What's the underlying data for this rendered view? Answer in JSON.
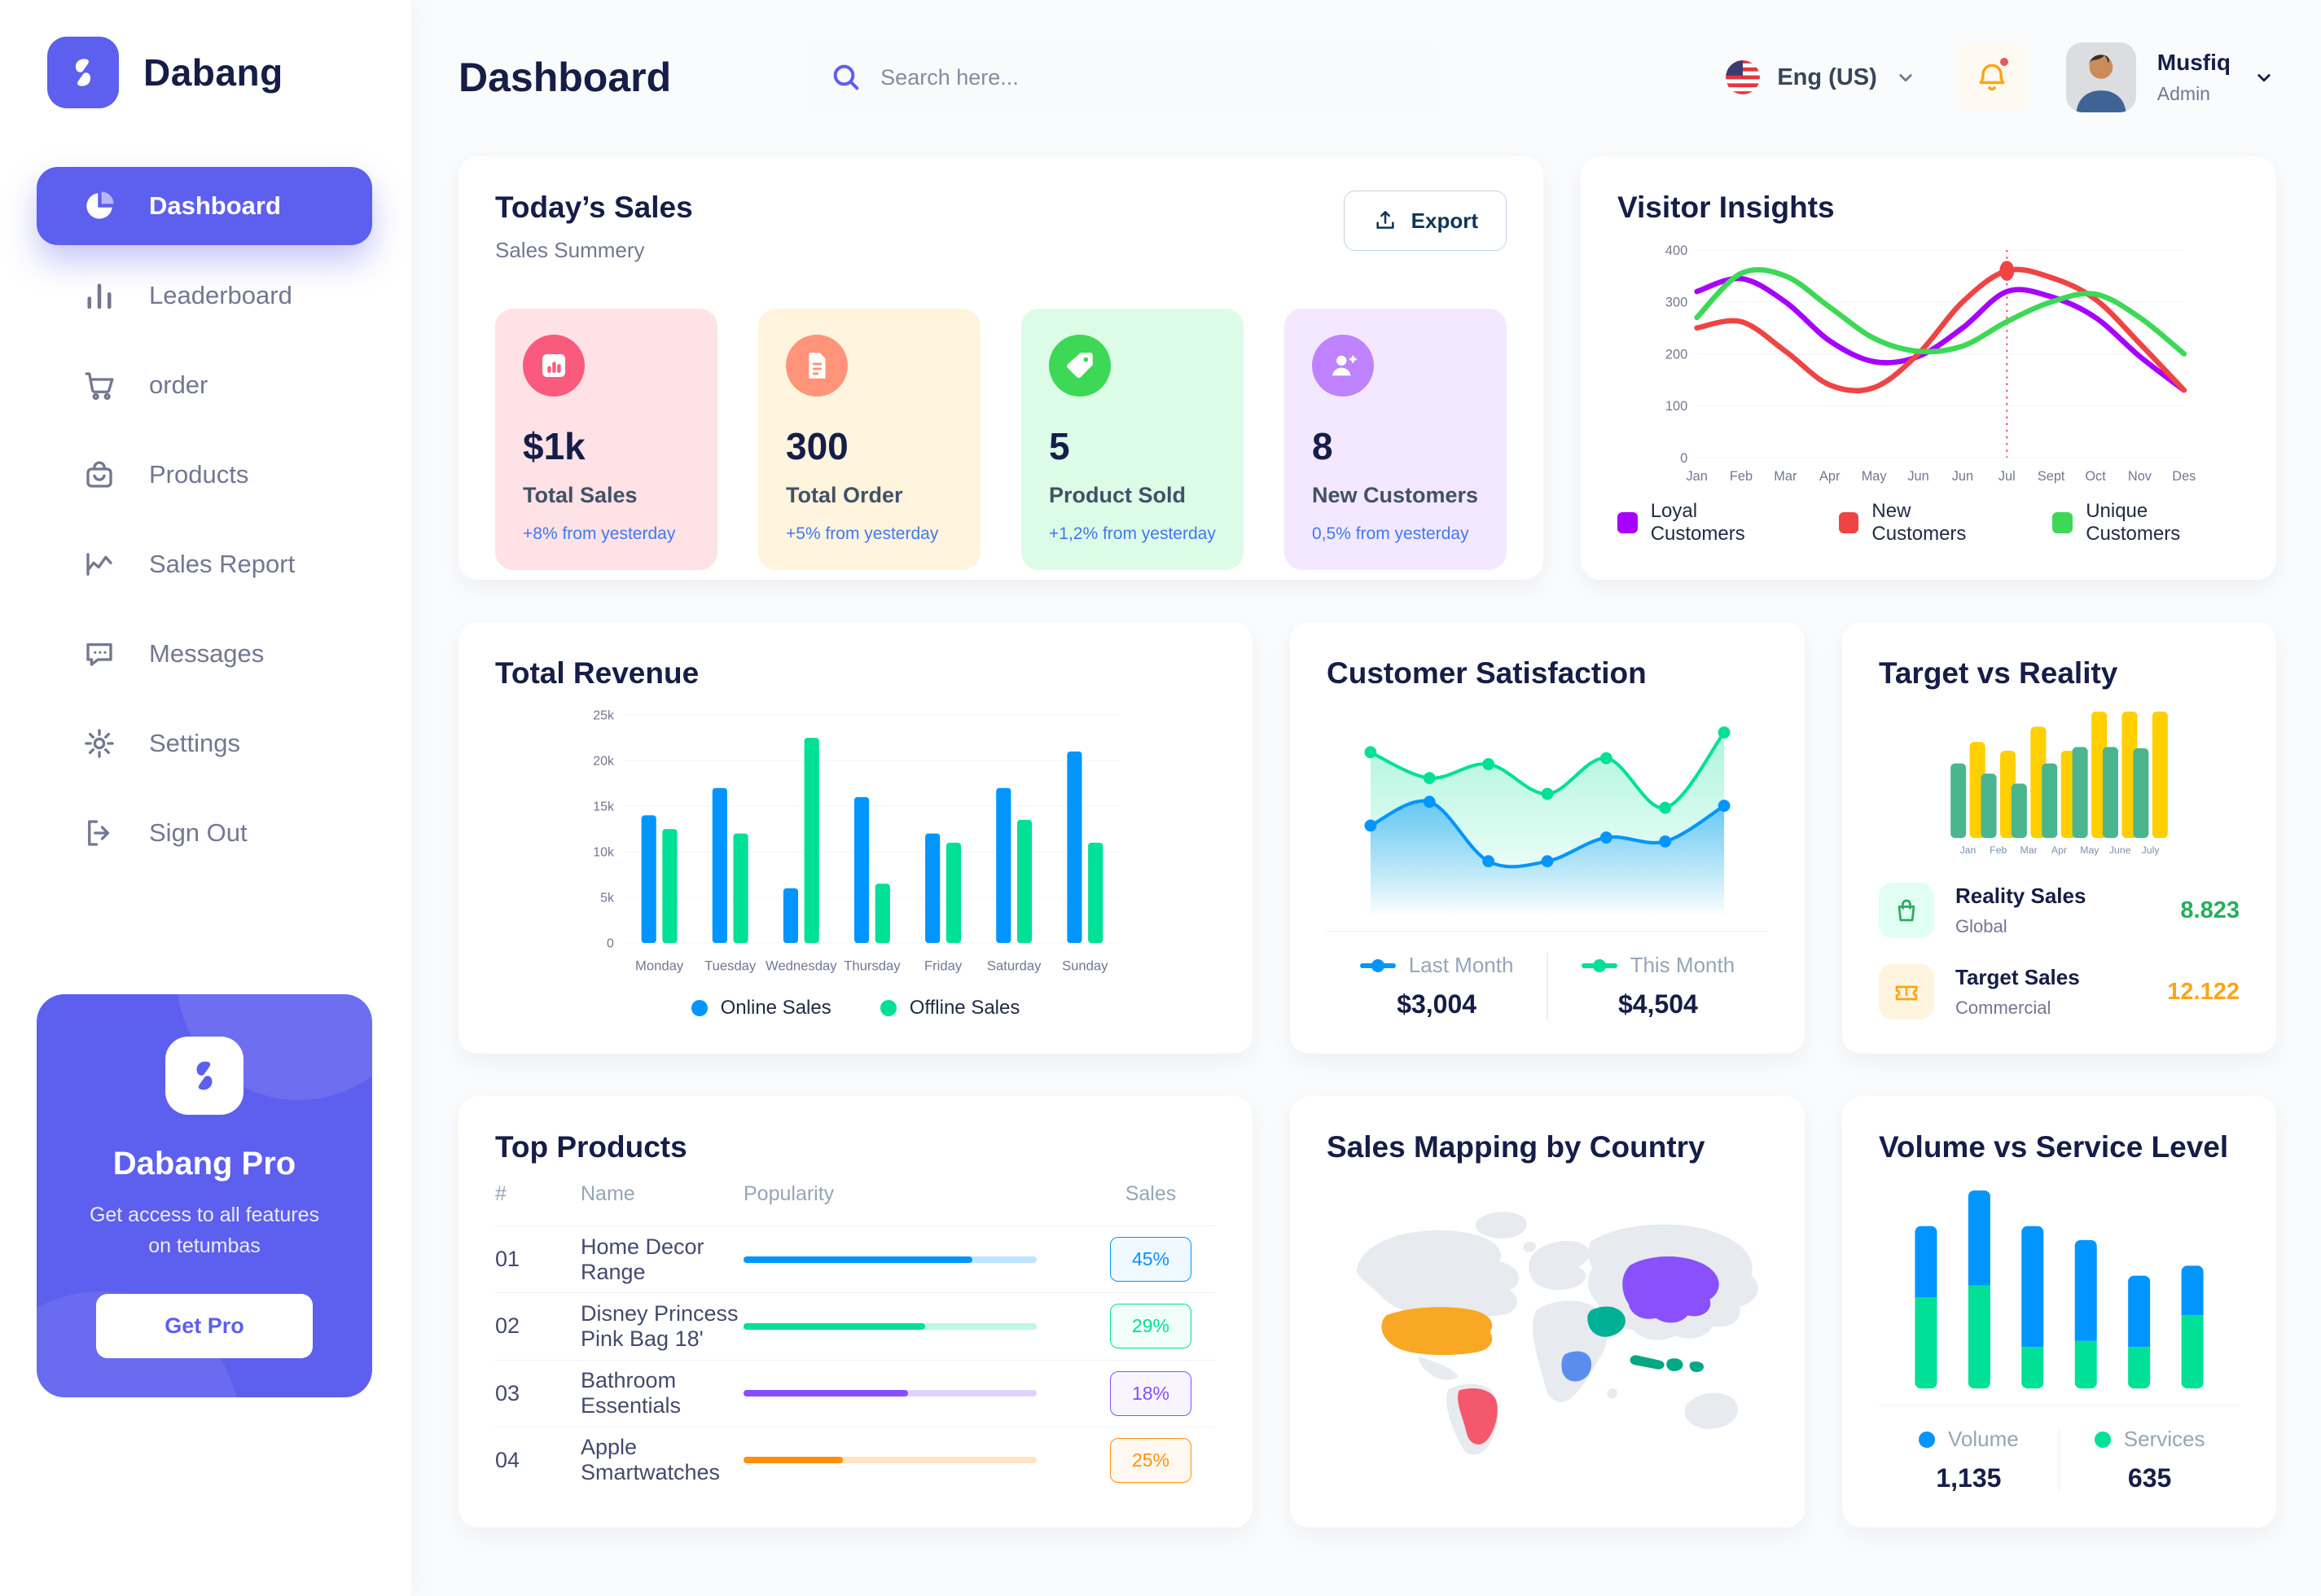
{
  "colors": {
    "accent": "#5D5FEF",
    "text_dark": "#151D48",
    "text_gray": "#737791",
    "delta_blue": "#4079ED"
  },
  "sidebar": {
    "brand": "Dabang",
    "items": [
      {
        "label": "Dashboard",
        "icon": "pie-chart",
        "active": true
      },
      {
        "label": "Leaderboard",
        "icon": "bar-chart",
        "active": false
      },
      {
        "label": "order",
        "icon": "cart",
        "active": false
      },
      {
        "label": "Products",
        "icon": "bag",
        "active": false
      },
      {
        "label": "Sales Report",
        "icon": "line-chart",
        "active": false
      },
      {
        "label": "Messages",
        "icon": "chat",
        "active": false
      },
      {
        "label": "Settings",
        "icon": "gear",
        "active": false
      },
      {
        "label": "Sign Out",
        "icon": "sign-out",
        "active": false
      }
    ],
    "pro": {
      "title": "Dabang Pro",
      "description": "Get access to all features on tetumbas",
      "button_label": "Get Pro"
    }
  },
  "header": {
    "page_title": "Dashboard",
    "search_placeholder": "Search here...",
    "language_label": "Eng (US)",
    "user_name": "Musfiq",
    "user_role": "Admin"
  },
  "today_sales": {
    "title": "Today’s Sales",
    "subtitle": "Sales Summery",
    "export_label": "Export",
    "stats": [
      {
        "value": "$1k",
        "label": "Total Sales",
        "delta": "+8% from yesterday",
        "bg": "#FFE2E5",
        "icon_bg": "#FA5A7D",
        "icon": "stat-bars"
      },
      {
        "value": "300",
        "label": "Total Order",
        "delta": "+5% from yesterday",
        "bg": "#FFF4DE",
        "icon_bg": "#FF947A",
        "icon": "stat-doc"
      },
      {
        "value": "5",
        "label": "Product Sold",
        "delta": "+1,2% from yesterday",
        "bg": "#DCFCE7",
        "icon_bg": "#3CD856",
        "icon": "stat-tag"
      },
      {
        "value": "8",
        "label": "New Customers",
        "delta": "0,5% from yesterday",
        "bg": "#F3E8FF",
        "icon_bg": "#BF83FF",
        "icon": "stat-user"
      }
    ]
  },
  "chart_data": [
    {
      "id": "visitor_insights",
      "type": "line",
      "title": "Visitor Insights",
      "x_labels": [
        "Jan",
        "Feb",
        "Mar",
        "Apr",
        "May",
        "Jun",
        "Jun",
        "Jul",
        "Sept",
        "Oct",
        "Nov",
        "Des"
      ],
      "ylim": [
        0,
        400
      ],
      "yticks": [
        0,
        100,
        200,
        300,
        400
      ],
      "grid": true,
      "legend_position": "bottom",
      "series": [
        {
          "name": "Loyal Customers",
          "color": "#A700FF",
          "values": [
            320,
            345,
            300,
            225,
            185,
            195,
            250,
            320,
            310,
            270,
            195,
            130
          ]
        },
        {
          "name": "New Customers",
          "color": "#EF4444",
          "values": [
            250,
            262,
            205,
            140,
            135,
            200,
            300,
            360,
            347,
            305,
            220,
            130
          ]
        },
        {
          "name": "Unique Customers",
          "color": "#3CD856",
          "values": [
            270,
            355,
            350,
            290,
            230,
            205,
            215,
            262,
            300,
            315,
            270,
            200
          ]
        }
      ],
      "marker": {
        "series_index": 1,
        "point_index": 7
      }
    },
    {
      "id": "total_revenue",
      "type": "bar",
      "title": "Total Revenue",
      "categories": [
        "Monday",
        "Tuesday",
        "Wednesday",
        "Thursday",
        "Friday",
        "Saturday",
        "Sunday"
      ],
      "ymax": 25000,
      "ytick_labels": [
        "0",
        "5k",
        "10k",
        "15k",
        "20k",
        "25k"
      ],
      "grid": true,
      "legend_position": "bottom",
      "series": [
        {
          "name": "Online Sales",
          "color": "#0095FF",
          "values": [
            14000,
            17000,
            6000,
            16000,
            12000,
            17000,
            21000
          ]
        },
        {
          "name": "Offline Sales",
          "color": "#00E096",
          "values": [
            12500,
            12000,
            22500,
            6500,
            11000,
            13500,
            11000
          ]
        }
      ]
    },
    {
      "id": "customer_satisfaction",
      "type": "area",
      "title": "Customer Satisfaction",
      "ylim": [
        0,
        100
      ],
      "grid": false,
      "legend_position": "bottom",
      "series": [
        {
          "name": "Last Month",
          "total": "$3,004",
          "color": "#0095FF",
          "values": [
            46,
            58,
            28,
            28,
            40,
            38,
            56
          ]
        },
        {
          "name": "This Month",
          "total": "$4,504",
          "color": "#00E096",
          "values": [
            83,
            70,
            77,
            62,
            80,
            55,
            93
          ]
        }
      ]
    },
    {
      "id": "target_vs_reality",
      "type": "bar",
      "title": "Target vs Reality",
      "categories": [
        "Jan",
        "Feb",
        "Mar",
        "Apr",
        "May",
        "June",
        "July"
      ],
      "ymax": 10,
      "grid": false,
      "legend_position": "bottom-rows",
      "series": [
        {
          "name": "Reality Sales",
          "subtitle": "Global",
          "display_value": "8.823",
          "color": "#4AB58E",
          "value_color": "#27AE60",
          "tint": "#E2FFF3",
          "values": [
            5.9,
            5.1,
            4.3,
            5.9,
            7.2,
            7.2,
            7.1
          ]
        },
        {
          "name": "Target Sales",
          "subtitle": "Commercial",
          "display_value": "12.122",
          "color": "#FFCF00",
          "value_color": "#FFA412",
          "tint": "#FFF4DE",
          "values": [
            7.6,
            6.9,
            8.8,
            6.9,
            10,
            10,
            10
          ]
        }
      ]
    },
    {
      "id": "volume_service",
      "type": "stacked-bar",
      "title": "Volume vs Service Level",
      "ymax": 10,
      "grid": false,
      "legend_position": "bottom",
      "series": [
        {
          "name": "Volume",
          "total": "1,135",
          "color": "#0095FF",
          "values": [
            3.6,
            4.8,
            6.1,
            5.1,
            3.6,
            2.5
          ]
        },
        {
          "name": "Services",
          "total": "635",
          "color": "#00E096",
          "values": [
            4.6,
            5.2,
            2.1,
            2.4,
            2.1,
            3.7
          ]
        }
      ]
    }
  ],
  "top_products": {
    "title": "Top Products",
    "columns": [
      "#",
      "Name",
      "Popularity",
      "Sales"
    ],
    "rows": [
      {
        "num": "01",
        "name": "Home Decor Range",
        "popularity": 78,
        "sales": "45%",
        "color": "#0095FF"
      },
      {
        "num": "02",
        "name": "Disney Princess Pink Bag 18'",
        "popularity": 62,
        "sales": "29%",
        "color": "#00E096"
      },
      {
        "num": "03",
        "name": "Bathroom Essentials",
        "popularity": 56,
        "sales": "18%",
        "color": "#884DFF"
      },
      {
        "num": "04",
        "name": "Apple Smartwatches",
        "popularity": 34,
        "sales": "25%",
        "color": "#FF8F0D"
      }
    ]
  },
  "sales_map": {
    "title": "Sales Mapping by Country",
    "countries": [
      {
        "name": "United States",
        "color": "#F9A826"
      },
      {
        "name": "Brazil",
        "color": "#F5576C"
      },
      {
        "name": "DR Congo",
        "color": "#5A8DEE"
      },
      {
        "name": "Saudi Arabia",
        "color": "#00B096"
      },
      {
        "name": "China",
        "color": "#8950FC"
      },
      {
        "name": "Indonesia",
        "color": "#00A884"
      }
    ]
  }
}
